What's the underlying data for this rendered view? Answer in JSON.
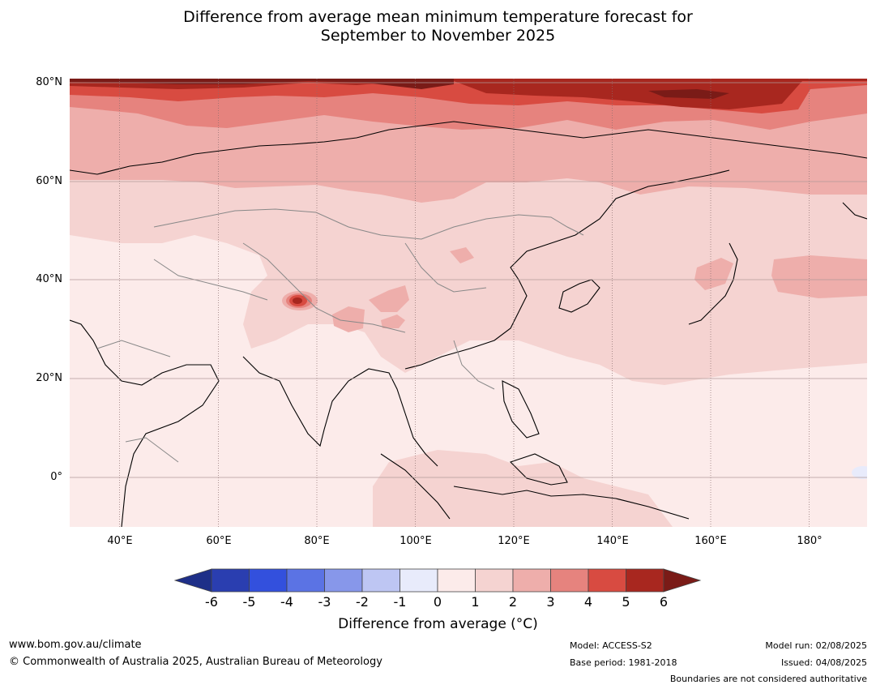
{
  "title_line1": "Difference from average mean minimum temperature forecast for",
  "title_line2": "September to November 2025",
  "lat_labels": [
    "80°N",
    "60°N",
    "40°N",
    "20°N",
    "0°"
  ],
  "lon_labels": [
    "40°E",
    "60°E",
    "80°E",
    "100°E",
    "120°E",
    "140°E",
    "160°E",
    "180°"
  ],
  "colorbar": {
    "ticks": [
      "-6",
      "-5",
      "-4",
      "-3",
      "-2",
      "-1",
      "0",
      "1",
      "2",
      "3",
      "4",
      "5",
      "6"
    ],
    "label": "Difference from average (°C)",
    "colors": [
      "#1e2f88",
      "#2a3eb0",
      "#3350dd",
      "#5b73e4",
      "#8797ea",
      "#bec6f3",
      "#e8ebfb",
      "#fcebea",
      "#f5d3d1",
      "#eeaeab",
      "#e6837e",
      "#d84b41",
      "#a8271f",
      "#7a1b17"
    ]
  },
  "footer": {
    "website": "www.bom.gov.au/climate",
    "copyright": "© Commonwealth of Australia 2025, Australian Bureau of Meteorology",
    "model": "Model: ACCESS-S2",
    "base_period": "Base period: 1981-2018",
    "model_run": "Model run: 02/08/2025",
    "issued": "Issued: 04/08/2025",
    "disclaimer": "Boundaries are not considered authoritative"
  }
}
